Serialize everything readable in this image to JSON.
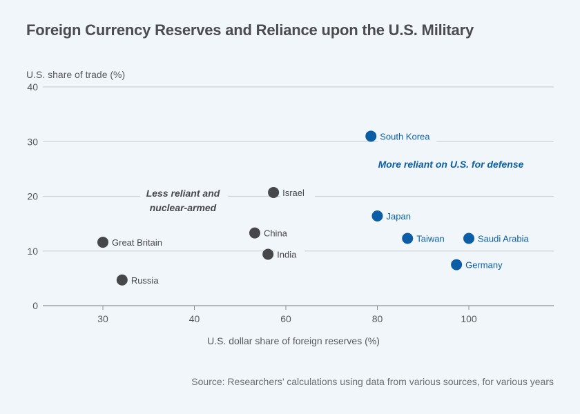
{
  "chart_data": {
    "type": "scatter",
    "title": "Foreign Currency Reserves and Reliance upon the U.S. Military",
    "xlabel": "U.S. dollar share of foreign reserves (%)",
    "ylabel": "U.S. share of trade (%)",
    "x_ticks": [
      30,
      40,
      60,
      80,
      100
    ],
    "x_tick_labels": [
      "30",
      "40",
      "60",
      "80",
      "100"
    ],
    "y_ticks": [
      0,
      10,
      20,
      30,
      40
    ],
    "y_tick_labels": [
      "0",
      "10",
      "20",
      "30",
      "40"
    ],
    "ylim": [
      0,
      40
    ],
    "grid": "horizontal",
    "series": [
      {
        "name": "Less reliant and nuclear-armed",
        "color": "#45474b",
        "points": [
          {
            "label": "Great Britain",
            "x": 30,
            "y": 11.6
          },
          {
            "label": "Russia",
            "x": 32.1,
            "y": 4.7
          },
          {
            "label": "China",
            "x": 53.2,
            "y": 13.3
          },
          {
            "label": "India",
            "x": 56.1,
            "y": 9.4
          },
          {
            "label": "Israel",
            "x": 57.3,
            "y": 20.7
          }
        ]
      },
      {
        "name": "More reliant on U.S. for defense",
        "color": "#0b5ea6",
        "points": [
          {
            "label": "South Korea",
            "x": 78.6,
            "y": 31.0
          },
          {
            "label": "Japan",
            "x": 80,
            "y": 16.4
          },
          {
            "label": "Taiwan",
            "x": 86.6,
            "y": 12.3
          },
          {
            "label": "Saudi Arabia",
            "x": 100,
            "y": 12.3
          },
          {
            "label": "Germany",
            "x": 97.3,
            "y": 7.5
          }
        ]
      }
    ],
    "annotations": [
      {
        "text_lines": [
          "Less reliant and",
          "nuclear-armed"
        ],
        "series": 0
      },
      {
        "text_lines": [
          "More reliant on U.S. for defense"
        ],
        "series": 1
      }
    ],
    "source": "Source: Researchers’ calculations using data from various sources, for various years"
  },
  "colors": {
    "background": "#f1f6fa",
    "grid": "#cfd3d8",
    "axis": "#8e9297",
    "text": "#55585d",
    "series_dark": "#45474b",
    "series_blue": "#0b5ea6"
  }
}
